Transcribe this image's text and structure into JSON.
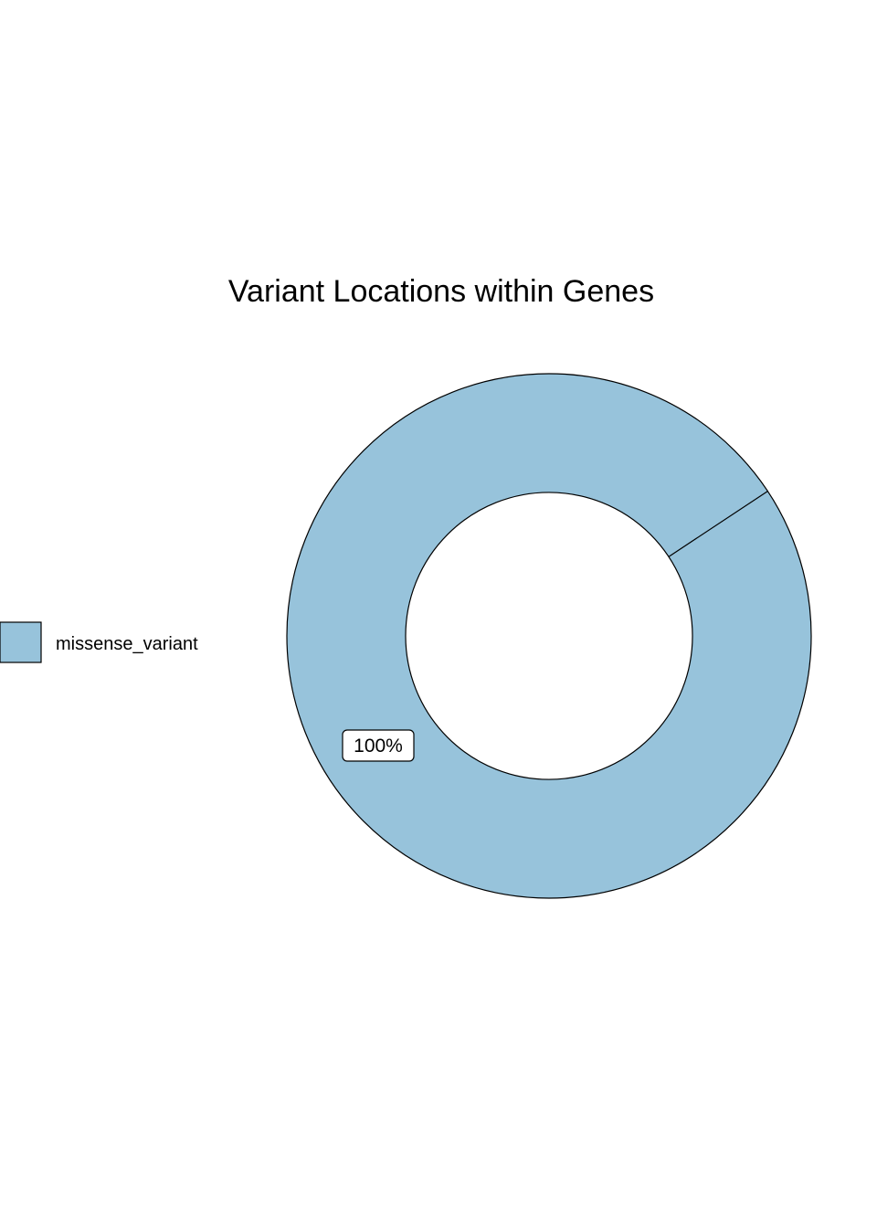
{
  "chart_data": {
    "type": "pie",
    "subtype": "donut",
    "title": "Variant Locations within Genes",
    "categories": [
      "missense_variant"
    ],
    "values": [
      100
    ],
    "labels": [
      "100%"
    ],
    "colors": [
      "#97c3db"
    ],
    "outline_color": "#000000",
    "background": "#ffffff",
    "legend": {
      "position": "left",
      "entries": [
        "missense_variant"
      ]
    }
  }
}
